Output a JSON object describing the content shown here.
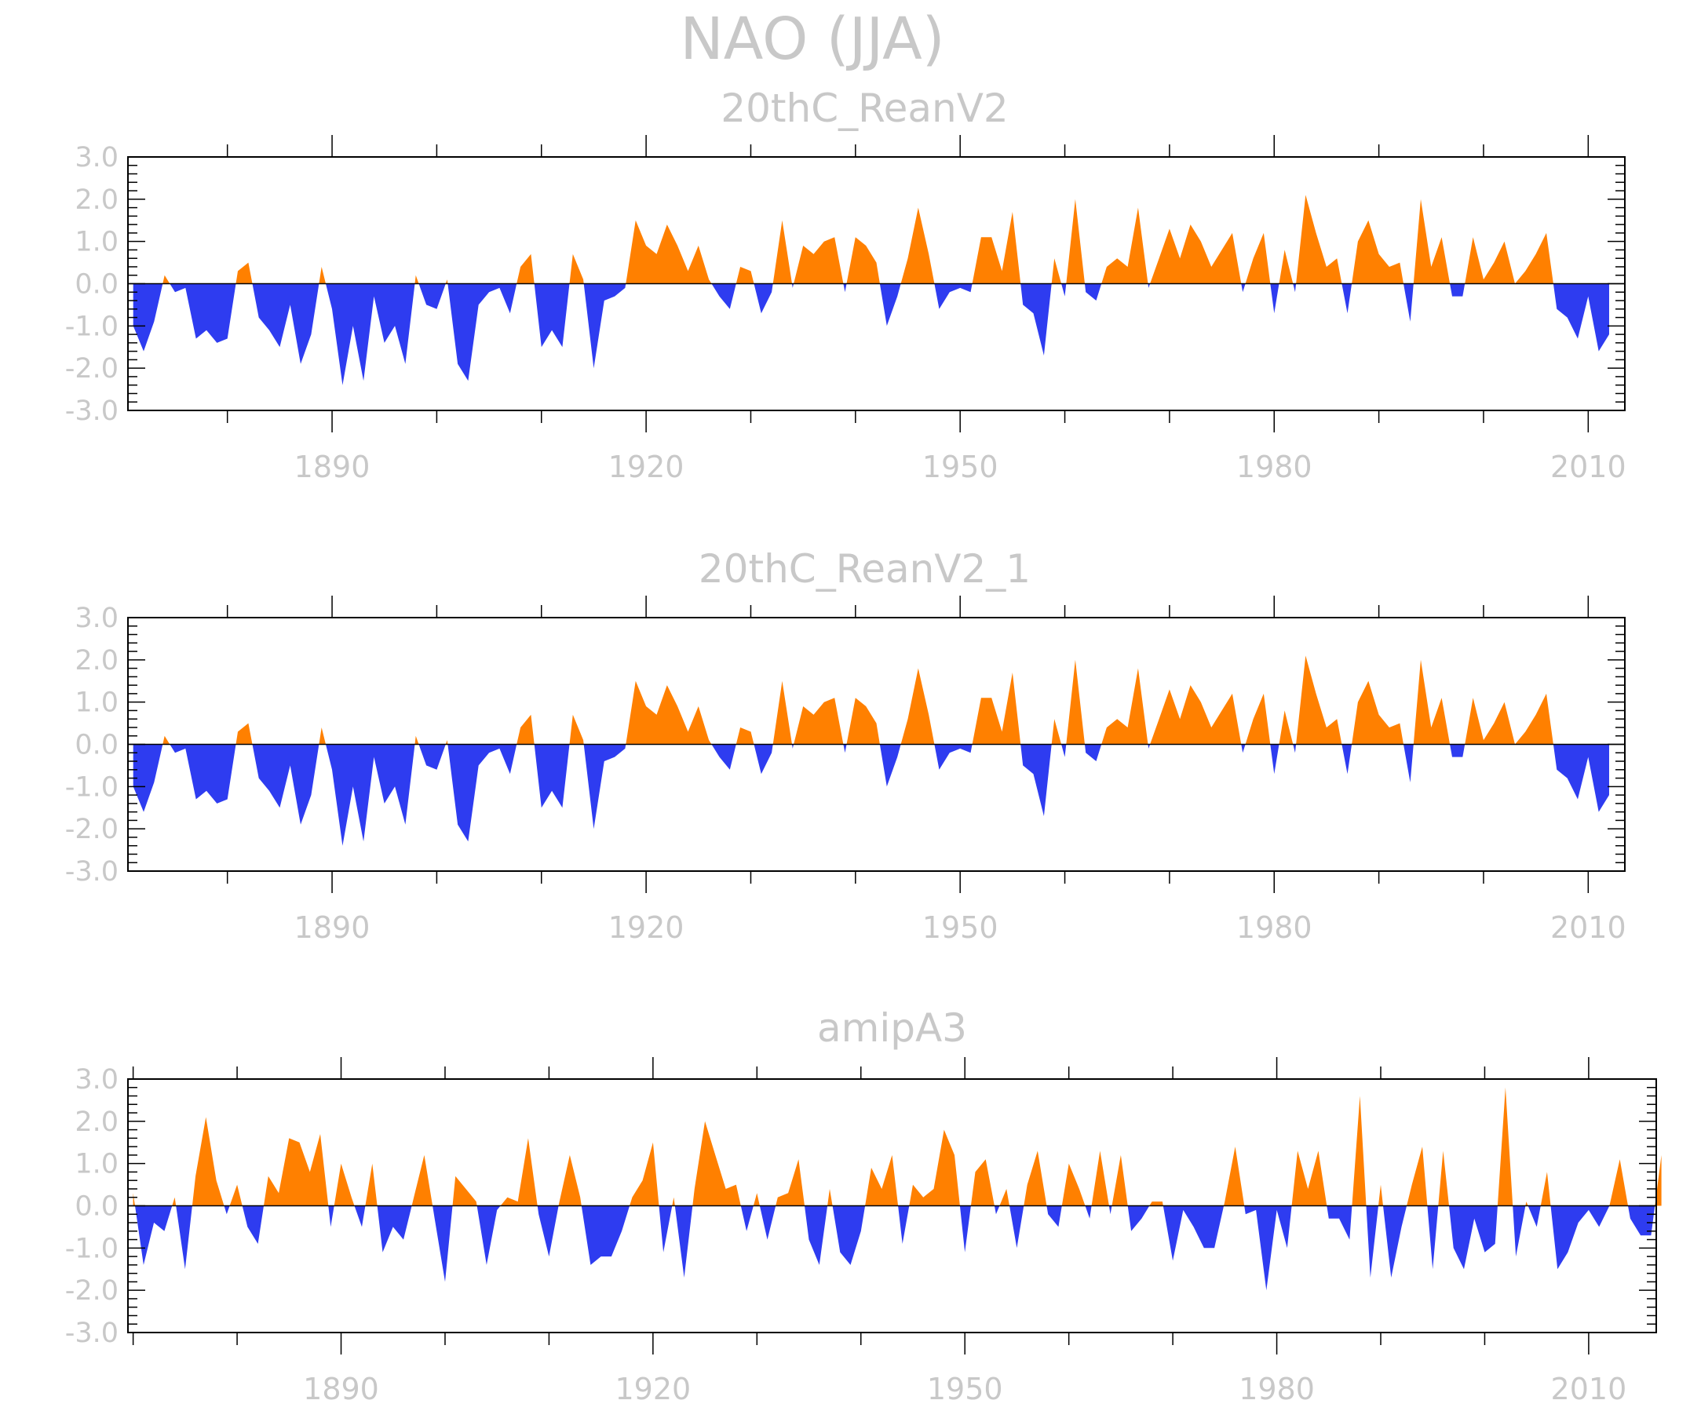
{
  "title": "NAO (JJA)",
  "colors": {
    "positive": "#ff8000",
    "negative": "#2e3cf0",
    "text": "#c8c8c8",
    "axis": "#000000"
  },
  "chart_data": [
    {
      "type": "area",
      "title": "20thC_ReanV2",
      "ylim": [
        -3.0,
        3.0
      ],
      "yticks": [
        "3.0",
        "2.0",
        "1.0",
        "0.0",
        "-1.0",
        "-2.0",
        "-3.0"
      ],
      "xticks": [
        "1890",
        "1920",
        "1950",
        "1980",
        "2010"
      ],
      "xlim": [
        1870.5,
        2013.5
      ],
      "x_start": 1871,
      "values": [
        -1.0,
        -1.6,
        -0.9,
        0.2,
        -0.2,
        -0.1,
        -1.3,
        -1.1,
        -1.4,
        -1.3,
        0.3,
        0.5,
        -0.8,
        -1.1,
        -1.5,
        -0.5,
        -1.9,
        -1.2,
        0.4,
        -0.6,
        -2.4,
        -1.0,
        -2.3,
        -0.3,
        -1.4,
        -1.0,
        -1.9,
        0.2,
        -0.5,
        -0.6,
        0.1,
        -1.9,
        -2.3,
        -0.5,
        -0.2,
        -0.1,
        -0.7,
        0.4,
        0.7,
        -1.5,
        -1.1,
        -1.5,
        0.7,
        0.1,
        -2.0,
        -0.4,
        -0.3,
        -0.1,
        1.5,
        0.9,
        0.7,
        1.4,
        0.9,
        0.3,
        0.9,
        0.1,
        -0.3,
        -0.6,
        0.4,
        0.3,
        -0.7,
        -0.2,
        1.5,
        -0.1,
        0.9,
        0.7,
        1.0,
        1.1,
        -0.2,
        1.1,
        0.9,
        0.5,
        -1.0,
        -0.3,
        0.6,
        1.8,
        0.7,
        -0.6,
        -0.2,
        -0.1,
        -0.2,
        1.1,
        1.1,
        0.3,
        1.7,
        -0.5,
        -0.7,
        -1.7,
        0.6,
        -0.3,
        2.0,
        -0.2,
        -0.4,
        0.4,
        0.6,
        0.4,
        1.8,
        -0.1,
        0.6,
        1.3,
        0.6,
        1.4,
        1.0,
        0.4,
        0.8,
        1.2,
        -0.2,
        0.6,
        1.2,
        -0.7,
        0.8,
        -0.2,
        2.1,
        1.2,
        0.4,
        0.6,
        -0.7,
        1.0,
        1.5,
        0.7,
        0.4,
        0.5,
        -0.9,
        2.0,
        0.4,
        1.1,
        -0.3,
        -0.3,
        1.1,
        0.1,
        0.5,
        1.0,
        0.0,
        0.3,
        0.7,
        1.2,
        -0.6,
        -0.8,
        -1.3,
        -0.3,
        -1.6,
        -1.2
      ]
    },
    {
      "type": "area",
      "title": "20thC_ReanV2_1",
      "ylim": [
        -3.0,
        3.0
      ],
      "yticks": [
        "3.0",
        "2.0",
        "1.0",
        "0.0",
        "-1.0",
        "-2.0",
        "-3.0"
      ],
      "xticks": [
        "1890",
        "1920",
        "1950",
        "1980",
        "2010"
      ],
      "xlim": [
        1870.5,
        2013.5
      ],
      "x_start": 1871,
      "values": [
        -1.0,
        -1.6,
        -0.9,
        0.2,
        -0.2,
        -0.1,
        -1.3,
        -1.1,
        -1.4,
        -1.3,
        0.3,
        0.5,
        -0.8,
        -1.1,
        -1.5,
        -0.5,
        -1.9,
        -1.2,
        0.4,
        -0.6,
        -2.4,
        -1.0,
        -2.3,
        -0.3,
        -1.4,
        -1.0,
        -1.9,
        0.2,
        -0.5,
        -0.6,
        0.1,
        -1.9,
        -2.3,
        -0.5,
        -0.2,
        -0.1,
        -0.7,
        0.4,
        0.7,
        -1.5,
        -1.1,
        -1.5,
        0.7,
        0.1,
        -2.0,
        -0.4,
        -0.3,
        -0.1,
        1.5,
        0.9,
        0.7,
        1.4,
        0.9,
        0.3,
        0.9,
        0.1,
        -0.3,
        -0.6,
        0.4,
        0.3,
        -0.7,
        -0.2,
        1.5,
        -0.1,
        0.9,
        0.7,
        1.0,
        1.1,
        -0.2,
        1.1,
        0.9,
        0.5,
        -1.0,
        -0.3,
        0.6,
        1.8,
        0.7,
        -0.6,
        -0.2,
        -0.1,
        -0.2,
        1.1,
        1.1,
        0.3,
        1.7,
        -0.5,
        -0.7,
        -1.7,
        0.6,
        -0.3,
        2.0,
        -0.2,
        -0.4,
        0.4,
        0.6,
        0.4,
        1.8,
        -0.1,
        0.6,
        1.3,
        0.6,
        1.4,
        1.0,
        0.4,
        0.8,
        1.2,
        -0.2,
        0.6,
        1.2,
        -0.7,
        0.8,
        -0.2,
        2.1,
        1.2,
        0.4,
        0.6,
        -0.7,
        1.0,
        1.5,
        0.7,
        0.4,
        0.5,
        -0.9,
        2.0,
        0.4,
        1.1,
        -0.3,
        -0.3,
        1.1,
        0.1,
        0.5,
        1.0,
        0.0,
        0.3,
        0.7,
        1.2,
        -0.6,
        -0.8,
        -1.3,
        -0.3,
        -1.6,
        -1.2
      ]
    },
    {
      "type": "area",
      "title": "amipA3",
      "ylim": [
        -3.0,
        3.0
      ],
      "yticks": [
        "3.0",
        "2.0",
        "1.0",
        "0.0",
        "-1.0",
        "-2.0",
        "-3.0"
      ],
      "xticks": [
        "1890",
        "1920",
        "1950",
        "1980",
        "2010"
      ],
      "xlim": [
        1869.5,
        2016.5
      ],
      "x_start": 1870,
      "values": [
        0.3,
        -1.4,
        -0.4,
        -0.6,
        0.2,
        -1.5,
        0.7,
        2.1,
        0.6,
        -0.2,
        0.5,
        -0.5,
        -0.9,
        0.7,
        0.3,
        1.6,
        1.5,
        0.8,
        1.7,
        -0.5,
        1.0,
        0.2,
        -0.5,
        1.0,
        -1.1,
        -0.5,
        -0.8,
        0.2,
        1.2,
        -0.3,
        -1.8,
        0.7,
        0.4,
        0.1,
        -1.4,
        -0.1,
        0.2,
        0.1,
        1.6,
        -0.2,
        -1.2,
        0.1,
        1.2,
        0.2,
        -1.4,
        -1.2,
        -1.2,
        -0.6,
        0.2,
        0.6,
        1.5,
        -1.1,
        0.2,
        -1.7,
        0.4,
        2.0,
        1.2,
        0.4,
        0.5,
        -0.6,
        0.3,
        -0.8,
        0.2,
        0.3,
        1.1,
        -0.8,
        -1.4,
        0.4,
        -1.1,
        -1.4,
        -0.6,
        0.9,
        0.4,
        1.2,
        -0.9,
        0.5,
        0.2,
        0.4,
        1.8,
        1.2,
        -1.1,
        0.8,
        1.1,
        -0.2,
        0.4,
        -1.0,
        0.5,
        1.3,
        -0.2,
        -0.5,
        1.0,
        0.4,
        -0.3,
        1.3,
        -0.2,
        1.2,
        -0.6,
        -0.3,
        0.1,
        0.1,
        -1.3,
        -0.1,
        -0.5,
        -1.0,
        -1.0,
        0.1,
        1.4,
        -0.2,
        -0.1,
        -2.0,
        -0.1,
        -1.0,
        1.3,
        0.4,
        1.3,
        -0.3,
        -0.3,
        -0.8,
        2.6,
        -1.7,
        0.5,
        -1.7,
        -0.5,
        0.5,
        1.4,
        -1.5,
        1.3,
        -1.0,
        -1.5,
        -0.3,
        -1.1,
        -0.9,
        2.8,
        -1.2,
        0.1,
        -0.5,
        0.8,
        -1.5,
        -1.1,
        -0.4,
        -0.1,
        -0.5,
        0.0,
        1.1,
        -0.3,
        -0.7,
        -0.7,
        1.2
      ]
    }
  ]
}
